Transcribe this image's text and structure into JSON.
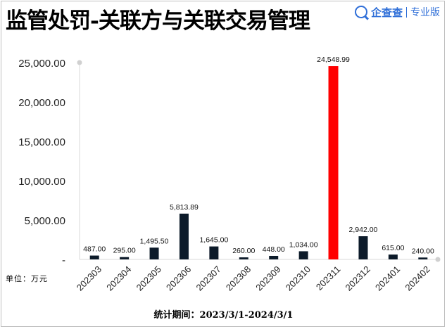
{
  "title": "监管处罚-关联方与关联交易管理",
  "brand": {
    "logo_icon": "qcc-search-logo-icon",
    "name": "企查查",
    "tag": "专业版",
    "color": "#2f6fd8"
  },
  "unit_label": "单位：万元",
  "period_label": "统计期间：2023/3/1-2024/3/1",
  "chart_data": {
    "type": "bar",
    "categories": [
      "202303",
      "202304",
      "202305",
      "202306",
      "202307",
      "202308",
      "202309",
      "202310",
      "202311",
      "202312",
      "202401",
      "202402"
    ],
    "values": [
      487.0,
      295.0,
      1495.5,
      5813.89,
      1645.0,
      260.0,
      448.0,
      1034.0,
      24548.99,
      2942.0,
      615.0,
      240.0
    ],
    "value_labels": [
      "487.00",
      "295.00",
      "1,495.50",
      "5,813.89",
      "1,645.00",
      "260.00",
      "448.00",
      "1,034.00",
      "24,548.99",
      "2,942.00",
      "615.00",
      "240.00"
    ],
    "yticks": [
      0,
      5000,
      10000,
      15000,
      20000,
      25000
    ],
    "ytick_labels": [
      "-",
      "5,000.00",
      "10,000.00",
      "15,000.00",
      "20,000.00",
      "25,000.00"
    ],
    "ylim": [
      0,
      25000
    ],
    "bar_color": "#0d1b2a",
    "highlight_color": "#ff0000",
    "highlight_index": 8,
    "grid": false,
    "legend": "none"
  }
}
